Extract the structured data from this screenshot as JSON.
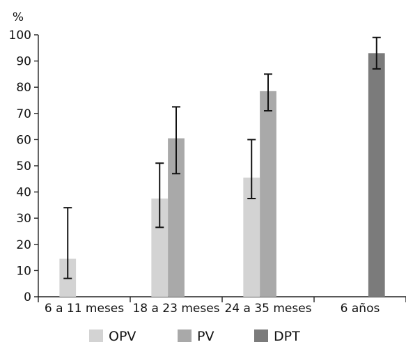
{
  "chart_data": {
    "type": "bar",
    "y_unit_label": "%",
    "title": "",
    "xlabel": "",
    "ylabel": "",
    "ylim": [
      0,
      100
    ],
    "yticks": [
      0,
      10,
      20,
      30,
      40,
      50,
      60,
      70,
      80,
      90,
      100
    ],
    "grid": false,
    "legend_position": "bottom",
    "categories": [
      "6 a 11 meses",
      "18 a 23 meses",
      "24 a 35 meses",
      "6 años"
    ],
    "series": [
      {
        "name": "OPV",
        "color": "#d3d3d3",
        "values": [
          14.5,
          37.5,
          45.5,
          null
        ],
        "error_low": [
          7,
          26.5,
          37.5,
          null
        ],
        "error_high": [
          34,
          51,
          60,
          null
        ]
      },
      {
        "name": "PV",
        "color": "#a9a9a9",
        "values": [
          null,
          60.5,
          78.5,
          null
        ],
        "error_low": [
          null,
          47,
          71,
          null
        ],
        "error_high": [
          null,
          72.5,
          85,
          null
        ]
      },
      {
        "name": "DPT",
        "color": "#7b7b7b",
        "values": [
          null,
          null,
          null,
          93
        ],
        "error_low": [
          null,
          null,
          null,
          87
        ],
        "error_high": [
          null,
          null,
          null,
          99
        ]
      }
    ]
  }
}
